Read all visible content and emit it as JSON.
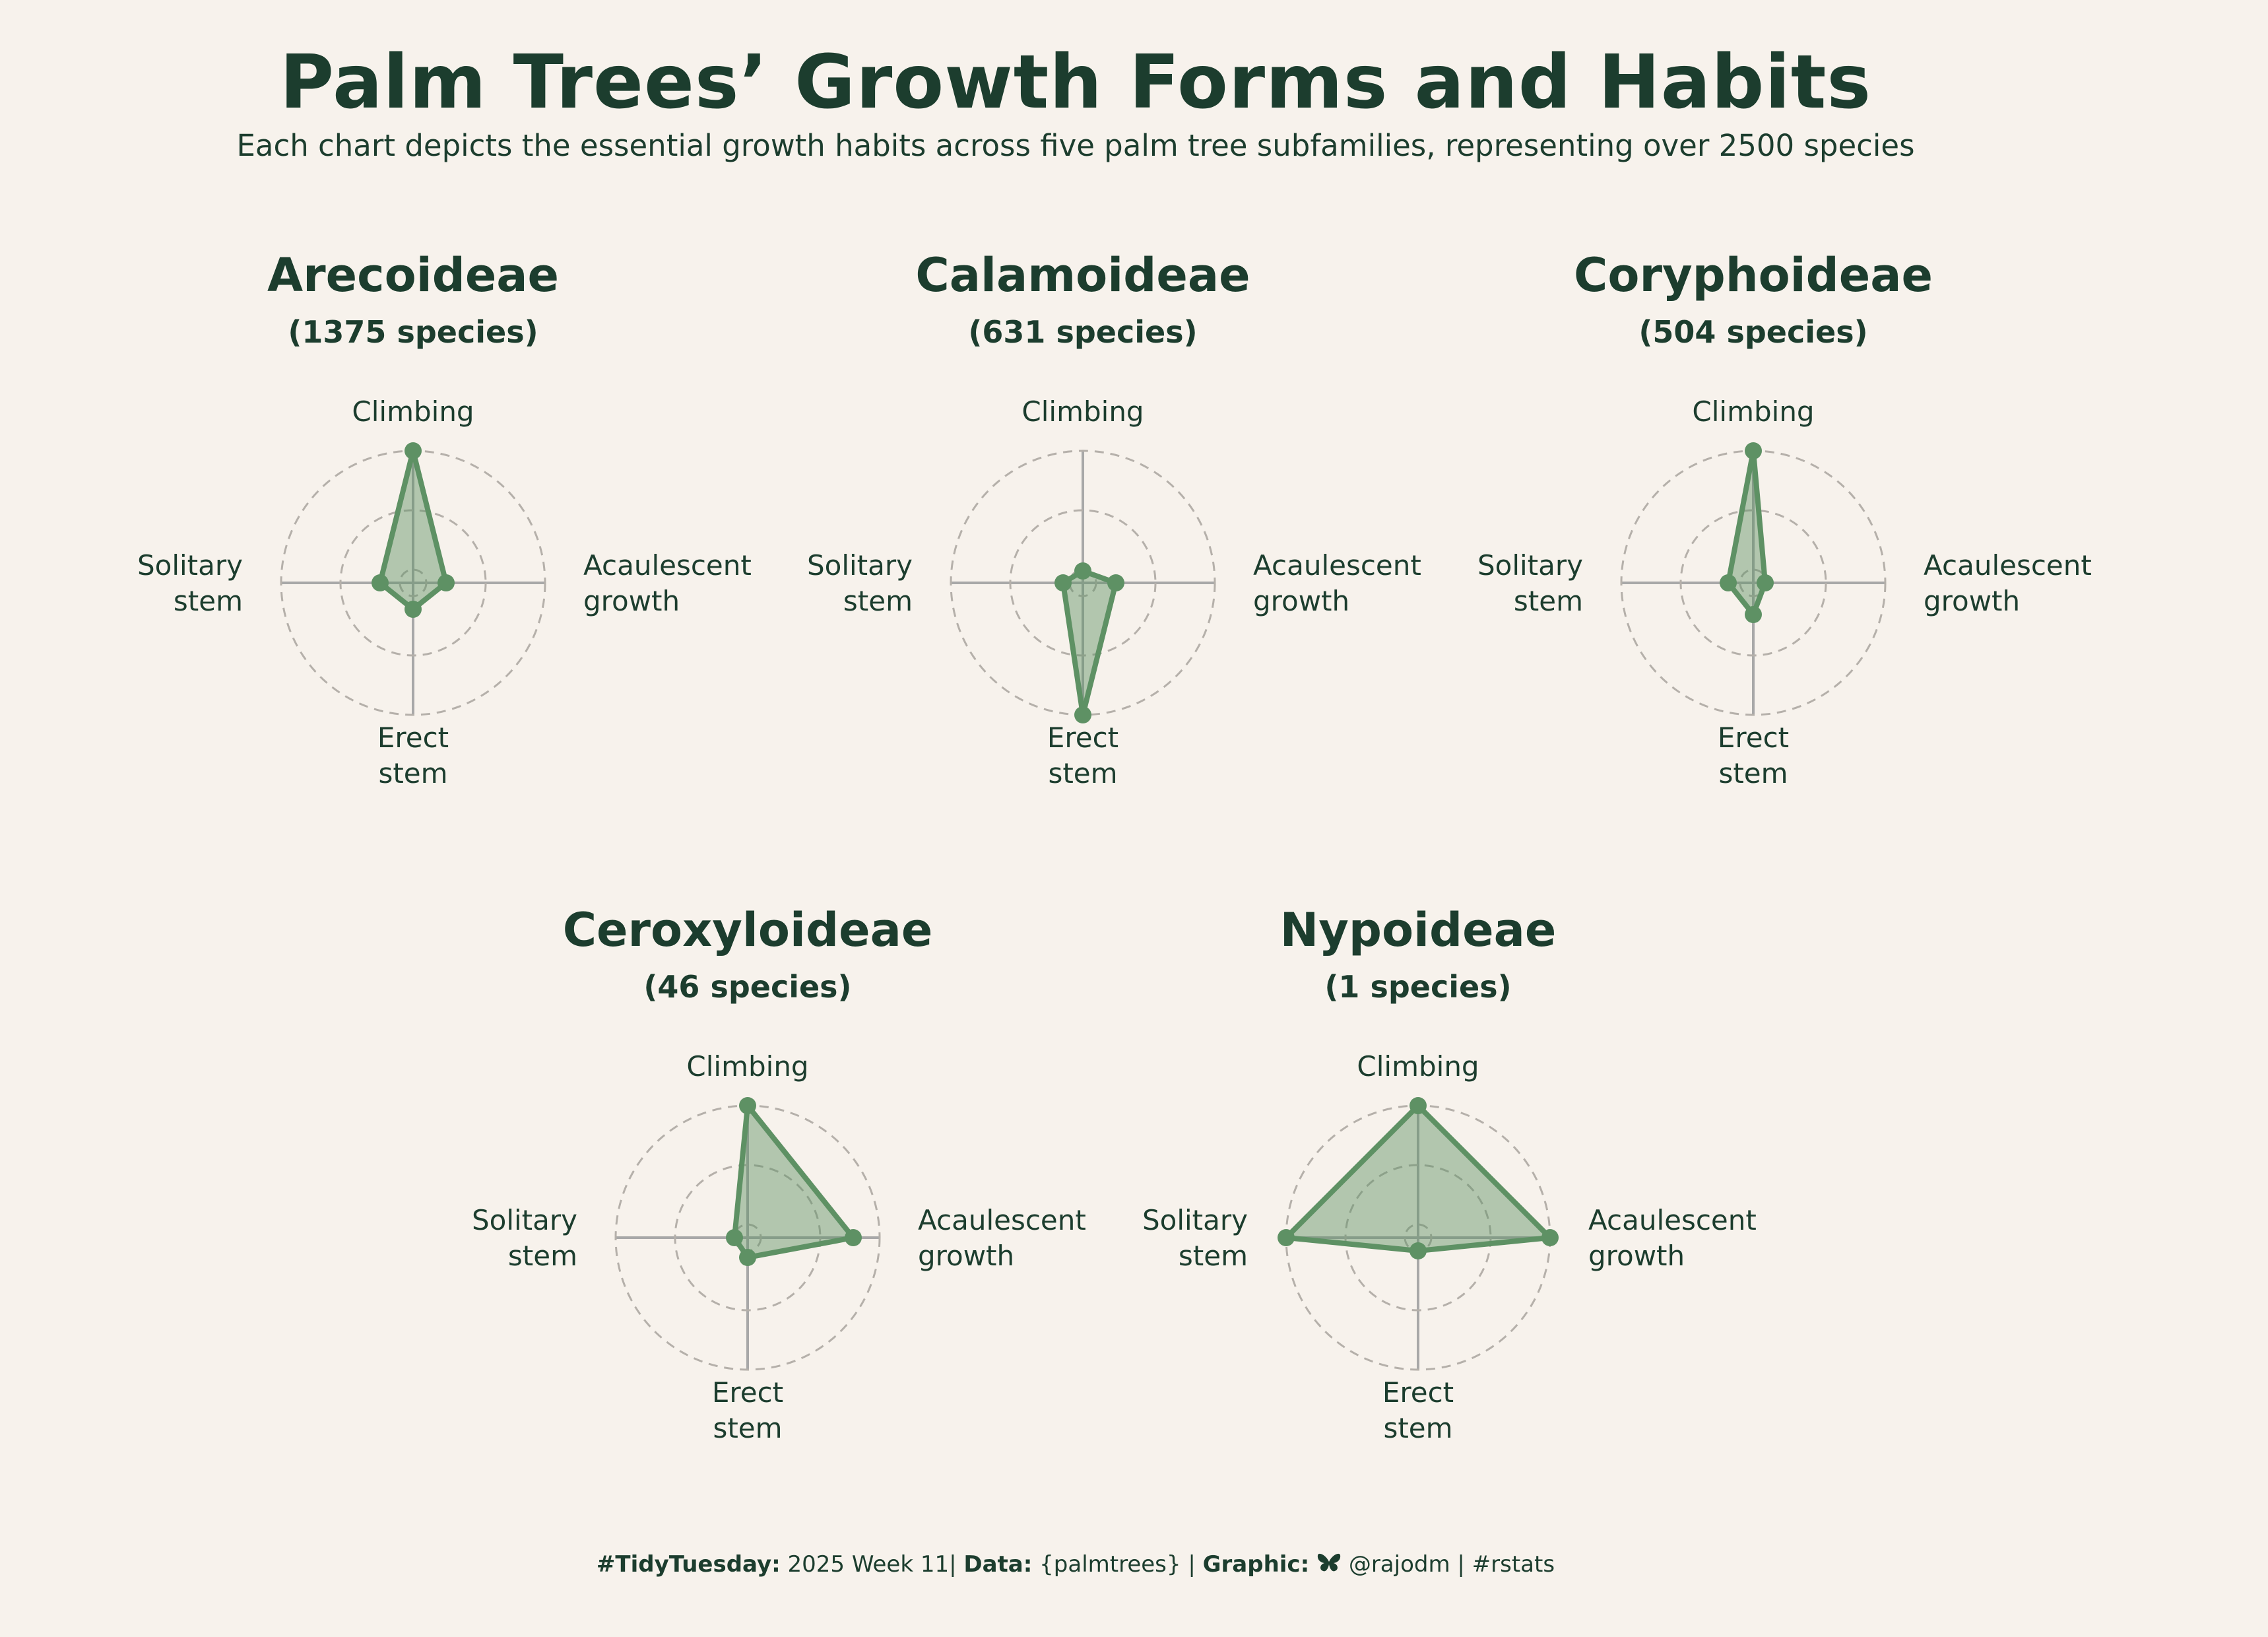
{
  "title": "Palm Trees’ Growth Forms and Habits",
  "subtitle": "Each chart depicts the essential growth habits across five palm tree subfamilies, representing over 2500 species",
  "colors": {
    "background": "#f7f2ec",
    "text": "#1c3d2e",
    "series_stroke": "#5e9164",
    "series_fill": "#5e9164",
    "axis": "#a8a8a8",
    "grid": "#b5b0aa"
  },
  "chart_data": {
    "type": "radar",
    "axes": [
      "Climbing",
      "Acaulescent growth",
      "Erect stem",
      "Solitary stem"
    ],
    "axis_labels": [
      [
        "Climbing"
      ],
      [
        "Acaulescent",
        "growth"
      ],
      [
        "Erect",
        "stem"
      ],
      [
        "Solitary",
        "stem"
      ]
    ],
    "rlim": [
      0,
      1
    ],
    "grid_circles": [
      0.1,
      0.55,
      1.0
    ],
    "grid": true,
    "panels": [
      {
        "name": "Arecoideae",
        "count_label": "(1375 species)",
        "values": [
          1.0,
          0.25,
          0.2,
          0.25
        ]
      },
      {
        "name": "Calamoideae",
        "count_label": "(631 species)",
        "values": [
          0.09,
          0.25,
          1.0,
          0.15
        ]
      },
      {
        "name": "Coryphoideae",
        "count_label": "(504 species)",
        "values": [
          1.0,
          0.09,
          0.24,
          0.19
        ]
      },
      {
        "name": "Ceroxyloideae",
        "count_label": "(46 species)",
        "values": [
          1.0,
          0.8,
          0.15,
          0.1
        ]
      },
      {
        "name": "Nypoideae",
        "count_label": "(1 species)",
        "values": [
          1.0,
          1.0,
          0.1,
          1.0
        ]
      }
    ]
  },
  "footer": {
    "tag": "#TidyTuesday:",
    "week": "2025 Week 11",
    "sep1": "|",
    "data_label": "Data:",
    "data_value": "{palmtrees}",
    "sep2": "|",
    "graphic_label": "Graphic:",
    "icon": "butterfly-icon",
    "handle": "@rajodm",
    "sep3": "|",
    "hashtag": "#rstats"
  }
}
